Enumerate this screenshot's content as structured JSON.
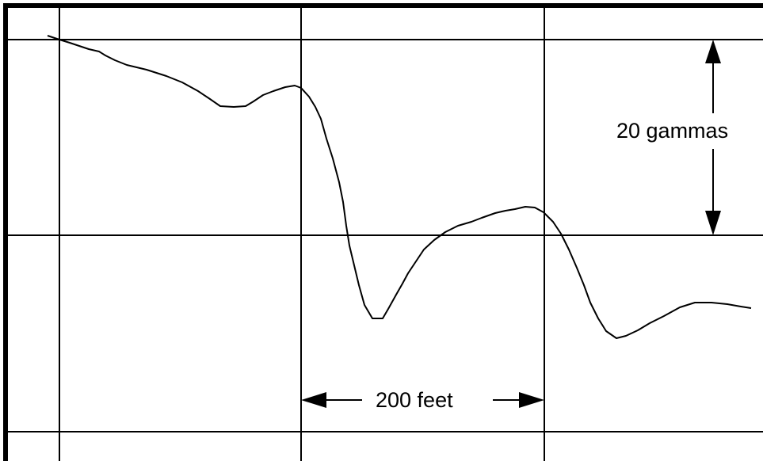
{
  "labels": {
    "vertical_scale": "20 gammas",
    "horizontal_scale": "200 feet"
  },
  "colors": {
    "background": "#ffffff",
    "ink": "#000000"
  }
}
